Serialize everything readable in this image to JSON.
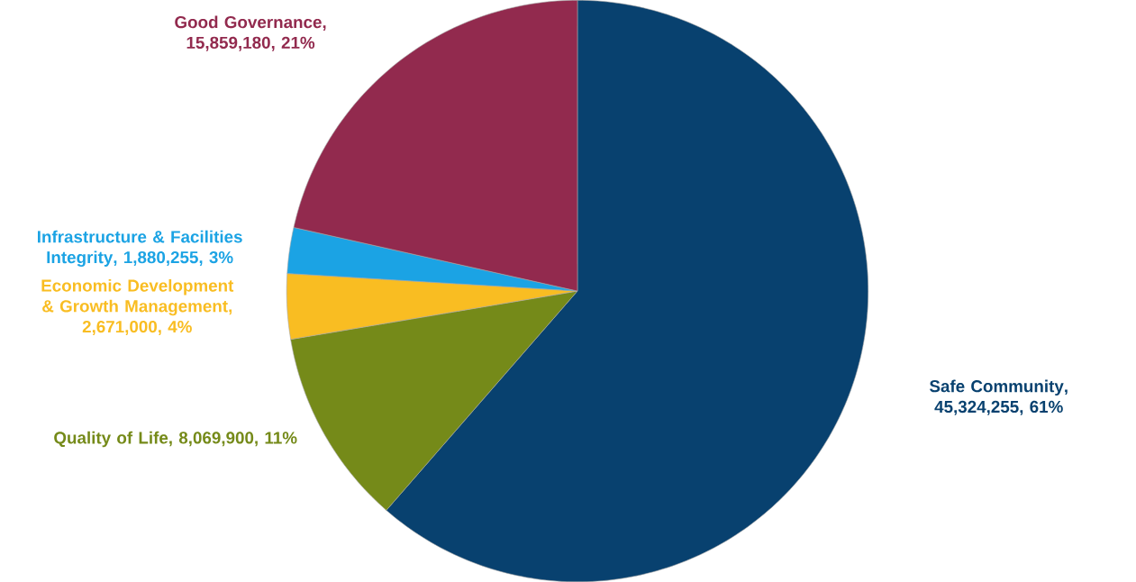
{
  "chart_data": {
    "type": "pie",
    "categories": [
      "Safe Community",
      "Quality of Life",
      "Economic Development & Growth Management",
      "Infrastructure & Facilities Integrity",
      "Good Governance"
    ],
    "values": [
      45324255,
      8069900,
      2671000,
      1880255,
      15859180
    ],
    "value_labels": [
      ", 45,324,255, 61%",
      ", 8,069,900, 11%",
      ", 2,671,000, 4%",
      ", 1,880,255, 3%",
      ", 15,859,180, 21%"
    ],
    "colors": [
      "#08416f",
      "#758a19",
      "#f9bd22",
      "#1ba3e4",
      "#922a4e"
    ]
  }
}
